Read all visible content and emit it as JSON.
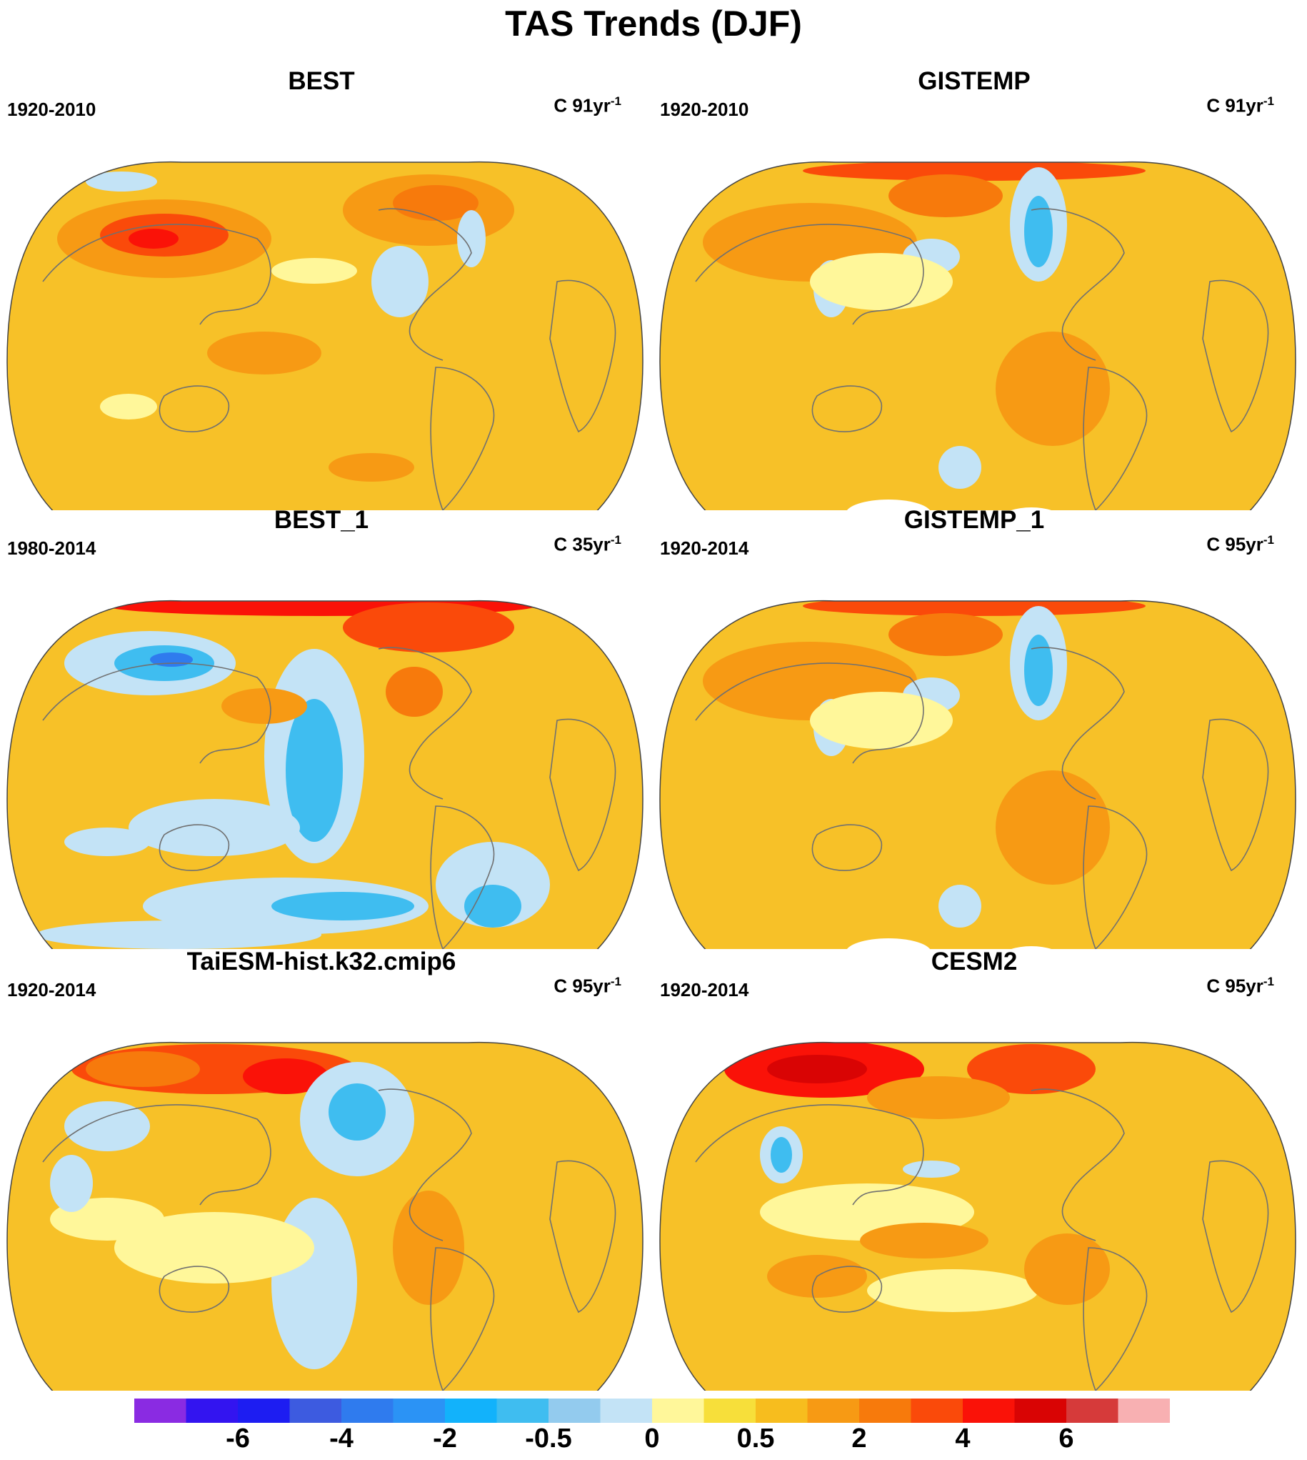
{
  "title": "TAS Trends (DJF)",
  "panels": [
    {
      "title": "BEST",
      "period": "1920-2010",
      "units": "C 91yr",
      "units_exp": "-1"
    },
    {
      "title": "GISTEMP",
      "period": "1920-2010",
      "units": "C 91yr",
      "units_exp": "-1"
    },
    {
      "title": "BEST_1",
      "period": "1980-2014",
      "units": "C 35yr",
      "units_exp": "-1"
    },
    {
      "title": "GISTEMP_1",
      "period": "1920-2014",
      "units": "C 95yr",
      "units_exp": "-1"
    },
    {
      "title": "TaiESM-hist.k32.cmip6",
      "period": "1920-2014",
      "units": "C 95yr",
      "units_exp": "-1"
    },
    {
      "title": "CESM2",
      "period": "1920-2014",
      "units": "C 95yr",
      "units_exp": "-1"
    }
  ],
  "colorbar": {
    "colors": [
      "#8a2be2",
      "#3314f0",
      "#1d1df2",
      "#3d5be0",
      "#2f7bee",
      "#2b93f5",
      "#12b2fb",
      "#3fbdf0",
      "#93cbee",
      "#c3e3f6",
      "#fff79a",
      "#f7df3a",
      "#f7bd1e",
      "#f79a14",
      "#f77a0c",
      "#fa4a0a",
      "#fa1208",
      "#d90404",
      "#d63a3a",
      "#f8b0b2"
    ],
    "tick_labels": [
      "-6",
      "-4",
      "-2",
      "-0.5",
      "0",
      "0.5",
      "2",
      "4",
      "6"
    ]
  },
  "map_colors": {
    "warm_base": "#f7c128",
    "light_yellow": "#fff79a",
    "light_blue": "#c3e3f6",
    "mid_blue": "#93cbee",
    "blue": "#3fbdf0",
    "strong_blue": "#2f7bee",
    "orange": "#f79a14",
    "dark_orange": "#f77a0c",
    "red_orange": "#fa4a0a",
    "red": "#fa1208",
    "dark_red": "#d90404",
    "missing": "#ffffff",
    "coastline": "#707070"
  }
}
